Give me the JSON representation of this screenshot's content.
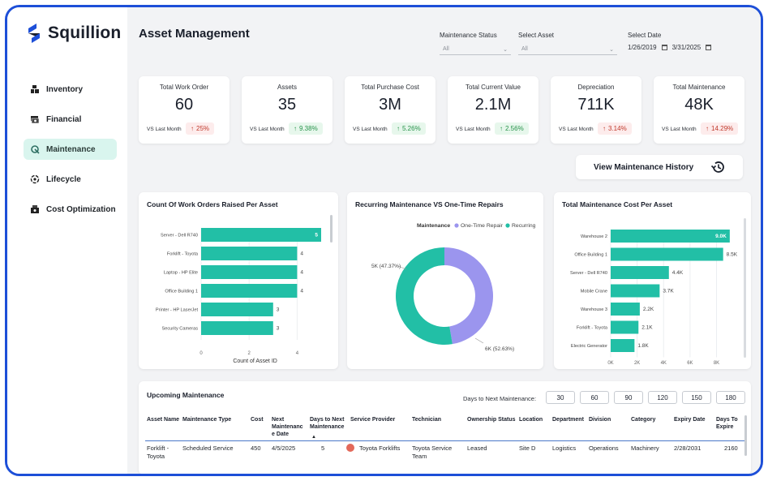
{
  "brand": {
    "name": "Squillion",
    "accent": "#1d4fd8",
    "teal": "#22bfa6",
    "purple": "#9b95ee"
  },
  "sidebar": {
    "items": [
      {
        "label": "Inventory",
        "icon": "boxes-icon",
        "active": false
      },
      {
        "label": "Financial",
        "icon": "money-icon",
        "active": false
      },
      {
        "label": "Maintenance",
        "icon": "wrench-icon",
        "active": true
      },
      {
        "label": "Lifecycle",
        "icon": "lifecycle-icon",
        "active": false
      },
      {
        "label": "Cost Optimization",
        "icon": "cost-icon",
        "active": false
      }
    ]
  },
  "header": {
    "title": "Asset Management"
  },
  "filters": {
    "maintenance_status": {
      "label": "Maintenance Status",
      "value": "All"
    },
    "select_asset": {
      "label": "Select Asset",
      "value": "All"
    },
    "select_date": {
      "label": "Select Date",
      "start": "1/26/2019",
      "end": "3/31/2025"
    }
  },
  "kpis": [
    {
      "title": "Total Work Order",
      "value": "60",
      "vs": "VS Last Month",
      "change": "25%",
      "dir": "up",
      "tone": "red"
    },
    {
      "title": "Assets",
      "value": "35",
      "vs": "VS Last Month",
      "change": "9.38%",
      "dir": "up",
      "tone": "green"
    },
    {
      "title": "Total Purchase Cost",
      "value": "3M",
      "vs": "VS Last Month",
      "change": "5.26%",
      "dir": "up",
      "tone": "green"
    },
    {
      "title": "Total Current Value",
      "value": "2.1M",
      "vs": "VS Last Month",
      "change": "2.56%",
      "dir": "up",
      "tone": "green"
    },
    {
      "title": "Depreciation",
      "value": "711K",
      "vs": "VS Last Month",
      "change": "3.14%",
      "dir": "up",
      "tone": "red"
    },
    {
      "title": "Total Maintenance",
      "value": "48K",
      "vs": "VS Last Month",
      "change": "14.29%",
      "dir": "up",
      "tone": "red"
    }
  ],
  "history_button": {
    "label": "View Maintenance History"
  },
  "chart_data": [
    {
      "type": "bar",
      "orientation": "horizontal",
      "title": "Count Of Work Orders Raised Per Asset",
      "categories": [
        "Server - Dell R740",
        "Forklift - Toyota",
        "Laptop - HP Elite",
        "Office Building 1",
        "Printer - HP LaserJet",
        "Security Cameras"
      ],
      "values": [
        5,
        4,
        4,
        4,
        3,
        3
      ],
      "labels": [
        "5",
        "4",
        "4",
        "4",
        "3",
        "3"
      ],
      "xlabel": "Count of Asset ID",
      "xticks": [
        "0",
        "2",
        "4"
      ],
      "xlim": [
        0,
        5
      ]
    },
    {
      "type": "pie",
      "donut": true,
      "title": "Recurring Maintenance VS One-Time Repairs",
      "legend_title": "Maintenance",
      "categories": [
        "One-Time Repair",
        "Recurring"
      ],
      "values": [
        47.37,
        52.63
      ],
      "labels": [
        "5K (47.37%)",
        "6K (52.63%)"
      ]
    },
    {
      "type": "bar",
      "orientation": "horizontal",
      "title": "Total Maintenance Cost Per Asset",
      "categories": [
        "Warehouse 2",
        "Office Building 1",
        "Server - Dell R740",
        "Mobile Crane",
        "Warehouse 3",
        "Forklift - Toyota",
        "Electric Generator"
      ],
      "values": [
        9.0,
        8.5,
        4.4,
        3.7,
        2.2,
        2.1,
        1.8
      ],
      "labels": [
        "9.0K",
        "8.5K",
        "4.4K",
        "3.7K",
        "2.2K",
        "2.1K",
        "1.8K"
      ],
      "xticks": [
        "0K",
        "2K",
        "4K",
        "6K",
        "8K"
      ],
      "xlim": [
        0,
        9.5
      ]
    }
  ],
  "upcoming": {
    "title": "Upcoming Maintenance",
    "days_label": "Days to Next Maintenance:",
    "day_options": [
      "30",
      "60",
      "90",
      "120",
      "150",
      "180"
    ],
    "columns": [
      "Asset Name",
      "Maintenance Type",
      "Cost",
      "Next Maintenanc e Date",
      "Days to Next Maintenance",
      "Service Provider",
      "Technician",
      "Ownership Status",
      "Location",
      "Department",
      "Division",
      "Category",
      "Expiry Date",
      "Days To Expire"
    ],
    "rows": [
      [
        "Forklift - Toyota",
        "Scheduled Service",
        "450",
        "4/5/2025",
        "5",
        "Toyota Forklifts",
        "Toyota Service Team",
        "Leased",
        "Site D",
        "Logistics",
        "Operations",
        "Machinery",
        "2/28/2031",
        "2160"
      ]
    ]
  }
}
